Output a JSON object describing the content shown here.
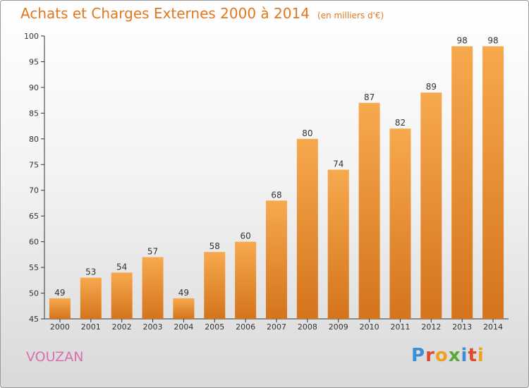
{
  "title": "Achats et Charges Externes 2000 à 2014",
  "subtitle": "(en milliers d'€)",
  "commune": "VOUZAN",
  "logo": "Proxiti",
  "colors": {
    "bar_light": "#f7a94e",
    "bar_dark": "#d4741c",
    "title": "#e07820",
    "commune": "#d86fb0"
  },
  "chart_data": {
    "type": "bar",
    "title": "Achats et Charges Externes 2000 à 2014",
    "subtitle": "(en milliers d'€)",
    "categories": [
      "2000",
      "2001",
      "2002",
      "2003",
      "2004",
      "2005",
      "2006",
      "2007",
      "2008",
      "2009",
      "2010",
      "2011",
      "2012",
      "2013",
      "2014"
    ],
    "values": [
      49,
      53,
      54,
      57,
      49,
      58,
      60,
      68,
      80,
      74,
      87,
      82,
      89,
      98,
      98
    ],
    "ylim": [
      45,
      100
    ],
    "yticks": [
      45,
      50,
      55,
      60,
      65,
      70,
      75,
      80,
      85,
      90,
      95,
      100
    ],
    "grid": false,
    "legend": "none"
  }
}
